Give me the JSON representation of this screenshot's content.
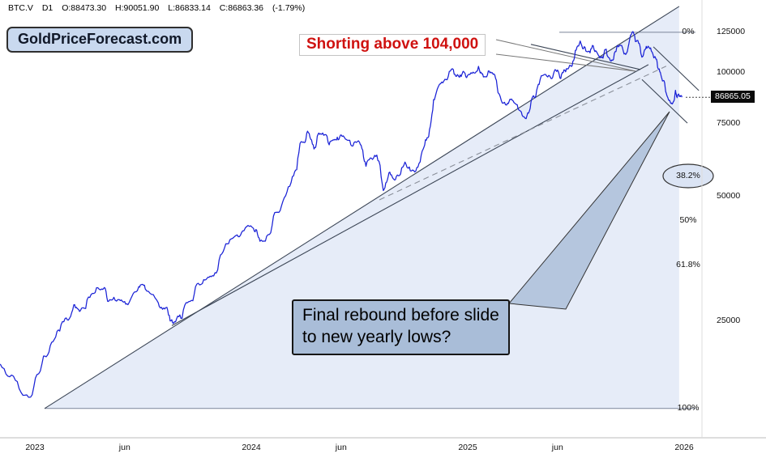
{
  "header": {
    "symbol": "BTC.V",
    "timeframe": "D1",
    "open_label": "O:",
    "open": "88473.30",
    "high_label": "H:",
    "high": "90051.90",
    "low_label": "L:",
    "low": "86833.14",
    "close_label": "C:",
    "close": "86863.36",
    "change": "(-1.79%)"
  },
  "watermark": {
    "text": "GoldPriceForecast.com"
  },
  "annotations": {
    "shorting_note": "Shorting above 104,000",
    "rebound_line1": "Final rebound before slide",
    "rebound_line2": "to new yearly lows?"
  },
  "price_scale": {
    "labels": [
      {
        "text": "125000",
        "price": 125000
      },
      {
        "text": "100000",
        "price": 100000
      },
      {
        "text": "75000",
        "price": 75000
      },
      {
        "text": "50000",
        "price": 50000
      },
      {
        "text": "25000",
        "price": 25000
      }
    ],
    "current_price": 86865.05,
    "current_price_badge": "86865.05"
  },
  "time_scale": {
    "labels": [
      {
        "text": "2023",
        "t": 2023.0
      },
      {
        "text": "jun",
        "t": 2023.415
      },
      {
        "text": "2024",
        "t": 2024.0
      },
      {
        "text": "jun",
        "t": 2024.415
      },
      {
        "text": "2025",
        "t": 2025.0
      },
      {
        "text": "jun",
        "t": 2025.415
      },
      {
        "text": "2026",
        "t": 2026.0
      }
    ]
  },
  "fib": {
    "high": 124800,
    "low": 15300,
    "levels": [
      {
        "label": "0%",
        "pct": 0,
        "highlighted": false
      },
      {
        "label": "38.2%",
        "pct": 38.2,
        "highlighted": true
      },
      {
        "label": "50%",
        "pct": 50,
        "highlighted": false
      },
      {
        "label": "61.8%",
        "pct": 61.8,
        "highlighted": false
      },
      {
        "label": "100%",
        "pct": 100,
        "highlighted": false
      }
    ]
  },
  "colors": {
    "price_line": "#1a22d6",
    "wedge_fill": "#d7e1f3",
    "trendline": "#3c4656",
    "dashed_line": "#8a8f99",
    "fib_line": "#7a8499",
    "accent_red": "#cf1210",
    "note_box_bg": "#a9bdd8",
    "callout_fill": "#b3c4dd",
    "watermark_bg": "#c9d9ef",
    "ellipse_fill": "#dbe4f4",
    "badge_bg": "#0b0b0b"
  },
  "chart_data": {
    "type": "line",
    "title": "BTC.V daily close, 2023-2026",
    "x_unit": "decimal_year",
    "y_scale": "log",
    "xlim": [
      2022.84,
      2026.06
    ],
    "ylim": [
      13000,
      150000
    ],
    "grid": false,
    "legend": false,
    "series": [
      {
        "name": "BTC.V",
        "points": [
          [
            2022.84,
            19600
          ],
          [
            2022.91,
            17900
          ],
          [
            2022.98,
            16300
          ],
          [
            2023.04,
            20500
          ],
          [
            2023.09,
            22500
          ],
          [
            2023.14,
            25300
          ],
          [
            2023.18,
            27300
          ],
          [
            2023.21,
            26400
          ],
          [
            2023.26,
            28900
          ],
          [
            2023.31,
            29800
          ],
          [
            2023.34,
            27800
          ],
          [
            2023.39,
            28100
          ],
          [
            2023.43,
            27300
          ],
          [
            2023.48,
            30200
          ],
          [
            2023.51,
            29800
          ],
          [
            2023.57,
            27600
          ],
          [
            2023.61,
            26900
          ],
          [
            2023.64,
            24600
          ],
          [
            2023.68,
            25300
          ],
          [
            2023.73,
            27900
          ],
          [
            2023.78,
            31400
          ],
          [
            2023.82,
            32100
          ],
          [
            2023.87,
            36700
          ],
          [
            2023.92,
            39800
          ],
          [
            2023.96,
            41200
          ],
          [
            2024.01,
            41800
          ],
          [
            2024.04,
            38900
          ],
          [
            2024.09,
            40800
          ],
          [
            2024.14,
            47500
          ],
          [
            2024.19,
            55800
          ],
          [
            2024.23,
            67800
          ],
          [
            2024.26,
            71900
          ],
          [
            2024.29,
            65100
          ],
          [
            2024.32,
            70900
          ],
          [
            2024.36,
            66600
          ],
          [
            2024.39,
            68500
          ],
          [
            2024.42,
            69800
          ],
          [
            2024.46,
            66600
          ],
          [
            2024.5,
            67600
          ],
          [
            2024.53,
            59100
          ],
          [
            2024.57,
            62800
          ],
          [
            2024.61,
            51600
          ],
          [
            2024.64,
            57200
          ],
          [
            2024.67,
            55800
          ],
          [
            2024.71,
            60500
          ],
          [
            2024.75,
            57700
          ],
          [
            2024.79,
            64400
          ],
          [
            2024.82,
            69800
          ],
          [
            2024.85,
            87100
          ],
          [
            2024.89,
            95100
          ],
          [
            2024.93,
            101800
          ],
          [
            2024.96,
            97300
          ],
          [
            2024.98,
            100400
          ],
          [
            2025.01,
            98600
          ],
          [
            2025.05,
            103200
          ],
          [
            2025.08,
            97300
          ],
          [
            2025.11,
            99500
          ],
          [
            2025.14,
            89100
          ],
          [
            2025.18,
            83200
          ],
          [
            2025.21,
            85100
          ],
          [
            2025.24,
            80700
          ],
          [
            2025.27,
            77100
          ],
          [
            2025.3,
            87100
          ],
          [
            2025.33,
            93300
          ],
          [
            2025.37,
            97300
          ],
          [
            2025.4,
            100400
          ],
          [
            2025.43,
            96400
          ],
          [
            2025.46,
            101800
          ],
          [
            2025.49,
            106700
          ],
          [
            2025.52,
            118900
          ],
          [
            2025.55,
            112100
          ],
          [
            2025.58,
            115700
          ],
          [
            2025.61,
            108200
          ],
          [
            2025.64,
            113600
          ],
          [
            2025.67,
            106700
          ],
          [
            2025.7,
            115700
          ],
          [
            2025.73,
            110300
          ],
          [
            2025.76,
            124900
          ],
          [
            2025.79,
            117400
          ],
          [
            2025.81,
            109300
          ],
          [
            2025.83,
            114500
          ],
          [
            2025.86,
            108200
          ],
          [
            2025.88,
            101800
          ],
          [
            2025.9,
            95100
          ],
          [
            2025.92,
            87900
          ],
          [
            2025.94,
            83900
          ],
          [
            2025.96,
            90300
          ],
          [
            2025.97,
            87900
          ],
          [
            2025.99,
            86865
          ]
        ]
      }
    ],
    "trendlines": [
      {
        "name": "long-term-support",
        "style": "solid",
        "from": [
          2023.045,
          15300
        ],
        "to": [
          2025.977,
          144200
        ]
      },
      {
        "name": "rising-support",
        "style": "solid",
        "from": [
          2023.633,
          24300
        ],
        "to": [
          2025.835,
          104200
        ]
      },
      {
        "name": "inner-dashed",
        "style": "dashed",
        "from": [
          2024.592,
          49000
        ],
        "to": [
          2025.917,
          103300
        ]
      },
      {
        "name": "top-resistance",
        "style": "solid",
        "from": [
          2025.292,
          116700
        ],
        "to": [
          2025.798,
          101400
        ]
      },
      {
        "name": "fall-channel-upper",
        "style": "solid",
        "from": [
          2025.858,
          115100
        ],
        "to": [
          2026.068,
          90200
        ]
      },
      {
        "name": "fall-channel-lower",
        "style": "solid",
        "from": [
          2025.805,
          95900
        ],
        "to": [
          2026.015,
          75200
        ]
      }
    ]
  }
}
